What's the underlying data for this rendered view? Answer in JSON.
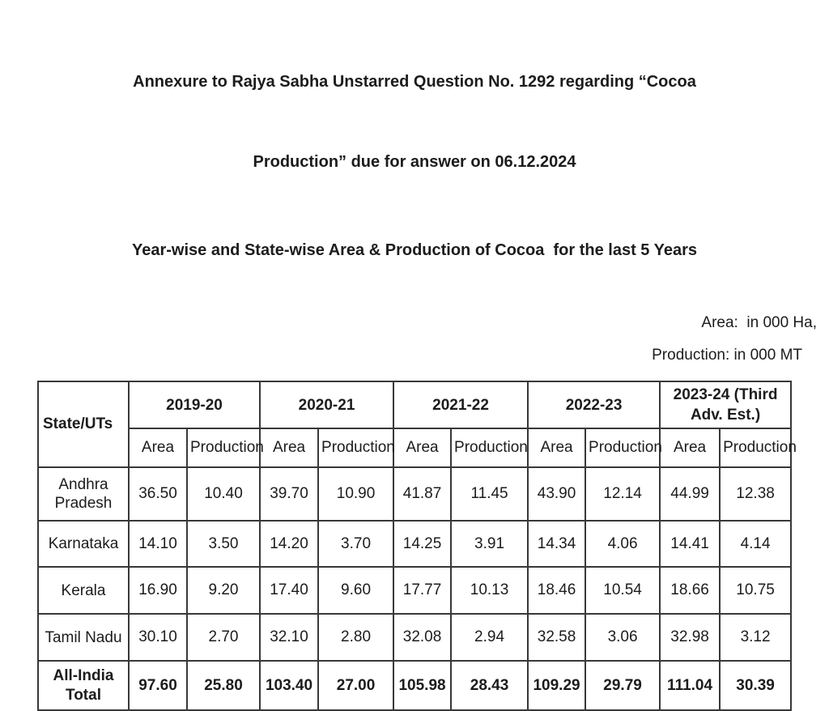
{
  "colors": {
    "background": "#ffffff",
    "text": "#1c1c1c",
    "border": "#383838"
  },
  "header": {
    "title_lines": [
      "Annexure to Rajya Sabha Unstarred Question No. 1292 regarding “Cocoa",
      "Production” due for answer on 06.12.2024"
    ],
    "subtitle": "Year-wise and State-wise Area & Production of Cocoa  for the last 5 Years"
  },
  "units": {
    "area": "Area:  in 000 Ha,",
    "production": "Production: in 000 MT"
  },
  "table": {
    "state_header": "State/UTs",
    "year_groups": [
      "2019-20",
      "2020-21",
      "2021-22",
      "2022-23",
      "2023-24 (Third Adv. Est.)"
    ],
    "sub_headers": [
      "Area",
      "Production"
    ],
    "rows": [
      {
        "state": "Andhra Pradesh",
        "values": [
          "36.50",
          "10.40",
          "39.70",
          "10.90",
          "41.87",
          "11.45",
          "43.90",
          "12.14",
          "44.99",
          "12.38"
        ]
      },
      {
        "state": "Karnataka",
        "values": [
          "14.10",
          "3.50",
          "14.20",
          "3.70",
          "14.25",
          "3.91",
          "14.34",
          "4.06",
          "14.41",
          "4.14"
        ]
      },
      {
        "state": "Kerala",
        "values": [
          "16.90",
          "9.20",
          "17.40",
          "9.60",
          "17.77",
          "10.13",
          "18.46",
          "10.54",
          "18.66",
          "10.75"
        ]
      },
      {
        "state": "Tamil Nadu",
        "values": [
          "30.10",
          "2.70",
          "32.10",
          "2.80",
          "32.08",
          "2.94",
          "32.58",
          "3.06",
          "32.98",
          "3.12"
        ]
      }
    ],
    "total_row": {
      "state": "All-India Total",
      "values": [
        "97.60",
        "25.80",
        "103.40",
        "27.00",
        "105.98",
        "28.43",
        "109.29",
        "29.79",
        "111.04",
        "30.39"
      ]
    }
  }
}
